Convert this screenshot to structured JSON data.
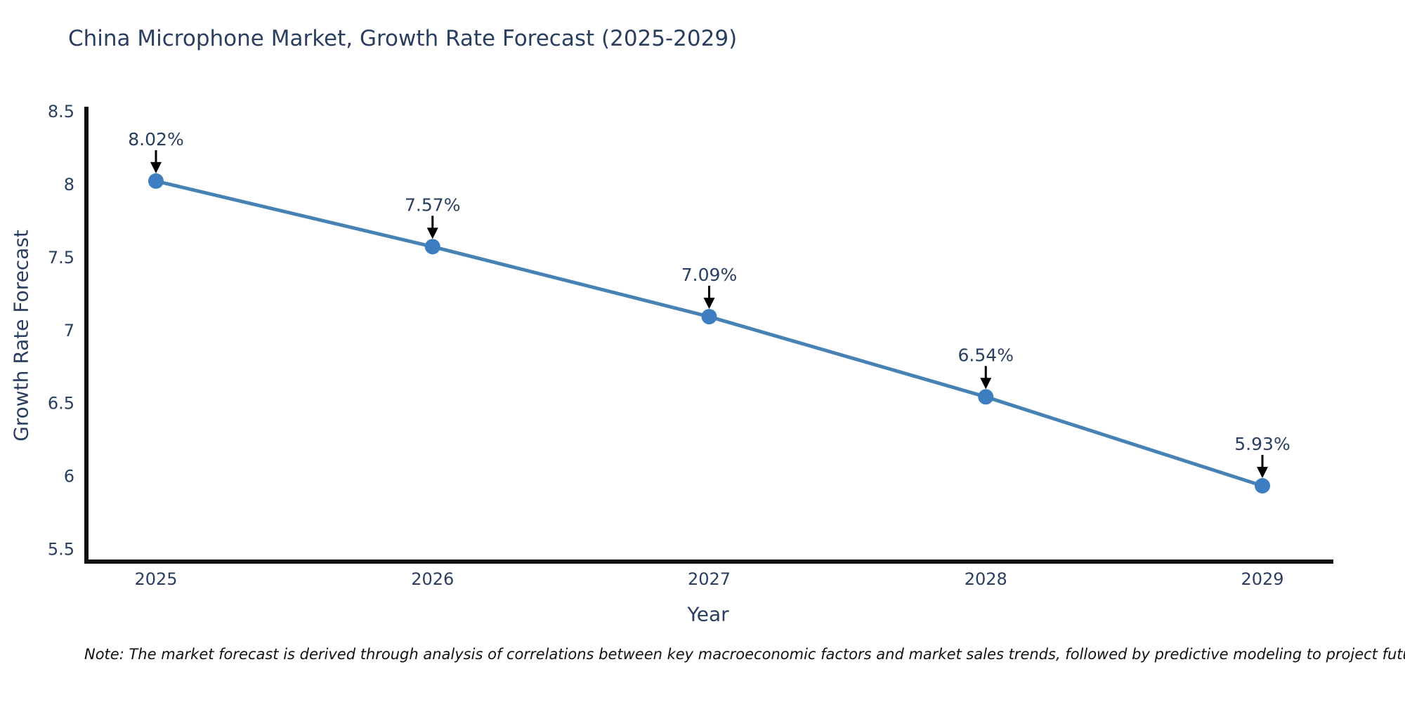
{
  "page": {
    "background": "#ffffff"
  },
  "chart_data": {
    "type": "line",
    "title": "China Microphone Market, Growth Rate Forecast (2025-2029)",
    "xlabel": "Year",
    "ylabel": "Growth Rate Forecast",
    "categories": [
      "2025",
      "2026",
      "2027",
      "2028",
      "2029"
    ],
    "series": [
      {
        "name": "Growth Rate Forecast",
        "values": [
          8.02,
          7.57,
          7.09,
          6.54,
          5.93
        ]
      }
    ],
    "point_labels": [
      "8.02%",
      "7.57%",
      "7.09%",
      "6.54%",
      "5.93%"
    ],
    "ytick_labels": [
      "5.5",
      "6",
      "6.5",
      "7",
      "7.5",
      "8",
      "8.5"
    ],
    "ytick_values": [
      5.5,
      6,
      6.5,
      7,
      7.5,
      8,
      8.5
    ],
    "ylim": [
      5.41,
      8.53
    ],
    "grid": false,
    "legend_position": "none",
    "colors": {
      "line": "#4682b4",
      "marker": "#3c7ebf",
      "axis": "#111111",
      "text": "#2a3f5f",
      "annotation_arrow": "#000000",
      "background": "#ffffff"
    },
    "note": "Note: The market forecast is derived through analysis of correlations between key macroeconomic factors and market sales trends, followed by predictive modeling to project future sales"
  }
}
